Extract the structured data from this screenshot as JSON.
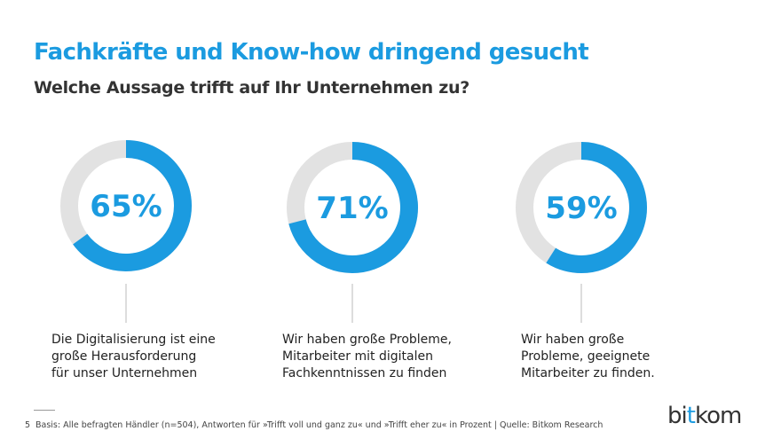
{
  "header": {
    "title": "Fachkräfte und Know-how dringend gesucht",
    "subtitle": "Welche Aussage trifft auf Ihr Unternehmen zu?"
  },
  "colors": {
    "accent": "#1b9be0",
    "track": "#e2e2e2",
    "connector": "#bbbbbb"
  },
  "chart_data": {
    "type": "pie",
    "variant": "donut",
    "series": [
      {
        "name": "Die Digitalisierung ist eine große Herausforderung für unser Unternehmen",
        "value": 65,
        "label": "65%",
        "caption": "Die Digitalisierung ist eine\ngroße Herausforderung\nfür unser Unternehmen"
      },
      {
        "name": "Wir haben große Probleme, Mitarbeiter mit digitalen Fachkenntnissen zu finden",
        "value": 71,
        "label": "71%",
        "caption": "Wir haben große Probleme,\n Mitarbeiter mit digitalen\nFachkenntnissen zu finden"
      },
      {
        "name": "Wir haben große Probleme, geeignete Mitarbeiter zu finden.",
        "value": 59,
        "label": "59%",
        "caption": "Wir haben große\nProbleme, geeignete\nMitarbeiter zu finden."
      }
    ],
    "unit": "%",
    "max": 100
  },
  "footer": {
    "page_number": "5",
    "source": "Basis: Alle befragten Händler (n=504), Antworten für »Trifft voll und ganz zu« und »Trifft eher zu« in Prozent | Quelle: Bitkom Research"
  },
  "logo": {
    "part1": "bi",
    "part2": "t",
    "part3": "kom"
  }
}
